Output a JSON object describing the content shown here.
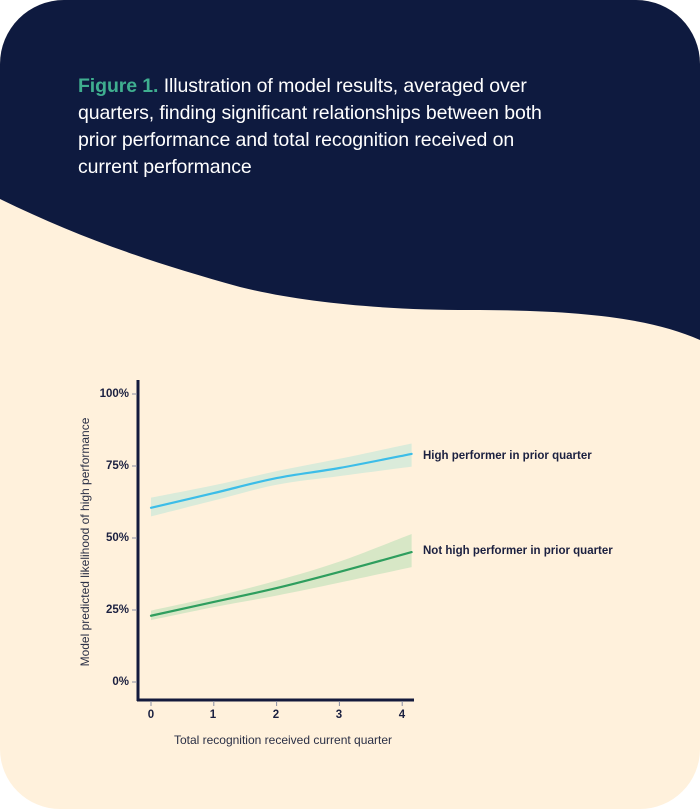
{
  "caption": {
    "figure_label": "Figure 1.",
    "text": " Illustration of model results, averaged over quarters, finding significant relationships between both prior performance and total recognition received on current performance"
  },
  "colors": {
    "header_bg": "#0e1a3f",
    "card_bg": "#fff1dc",
    "figure_label": "#3fae8f",
    "high_performer_line": "#3cbde8",
    "not_high_performer_line": "#2e9e5e",
    "axis": "#141a3c"
  },
  "chart_data": {
    "type": "line",
    "title": "",
    "xlabel": "Total recognition received current quarter",
    "ylabel": "Model predicted likelihood of high performance",
    "x": [
      0,
      1,
      2,
      3,
      4.15
    ],
    "x_ticks": [
      "0",
      "1",
      "2",
      "3",
      "4"
    ],
    "y_ticks": [
      "0%",
      "25%",
      "50%",
      "75%",
      "100%"
    ],
    "ylim": [
      0,
      100
    ],
    "xlim": [
      -0.2,
      4.2
    ],
    "grid": false,
    "legend_position": "inline-right",
    "series": [
      {
        "name": "High performer in prior quarter",
        "values": [
          60.5,
          65.6,
          70.8,
          74.3,
          79.2
        ],
        "ci_lower": [
          57.5,
          63.0,
          68.5,
          71.5,
          74.8
        ],
        "ci_upper": [
          64.0,
          68.3,
          73.2,
          77.5,
          82.8
        ]
      },
      {
        "name": "Not high performer in prior quarter",
        "values": [
          23.0,
          27.8,
          32.6,
          38.2,
          45.1
        ],
        "ci_lower": [
          21.5,
          26.0,
          30.0,
          34.5,
          39.9
        ],
        "ci_upper": [
          24.8,
          29.6,
          35.2,
          41.8,
          51.4
        ]
      }
    ]
  }
}
